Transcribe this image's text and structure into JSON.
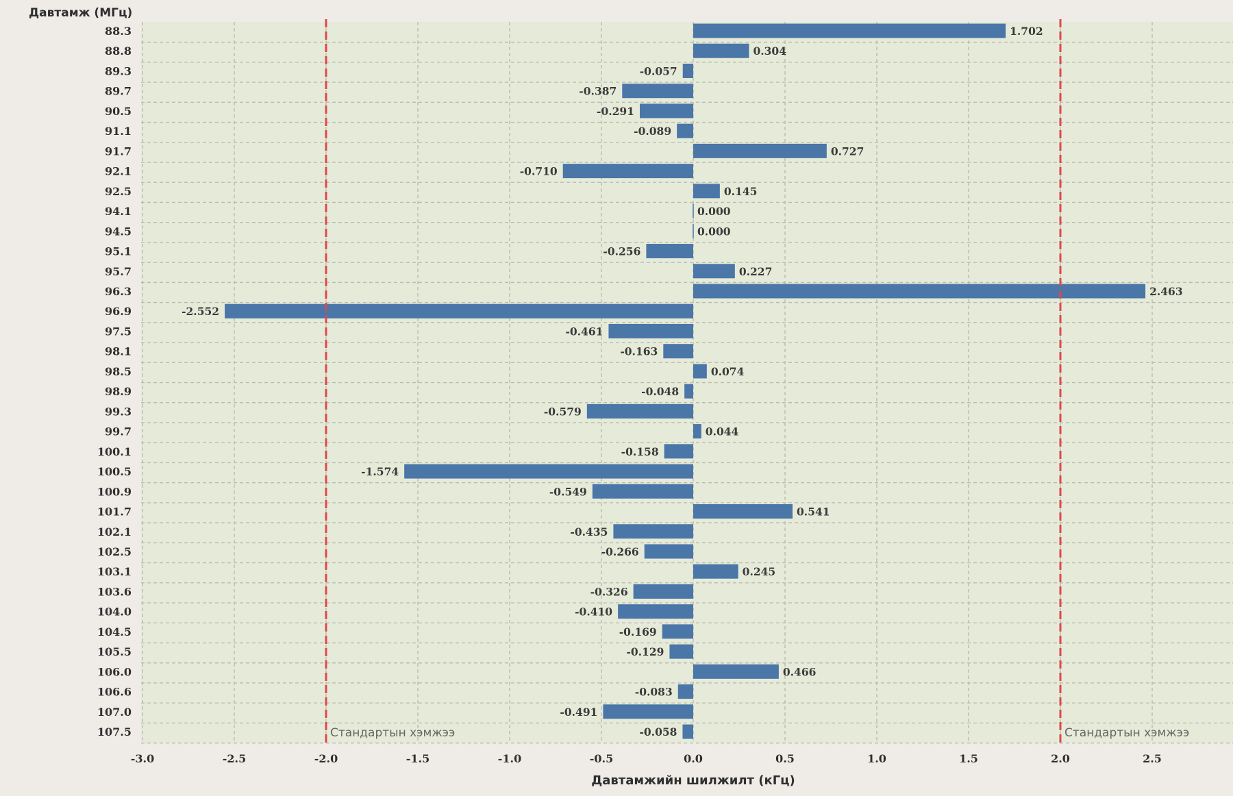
{
  "chart_data": {
    "type": "bar",
    "orientation": "horizontal",
    "ylabel": "Давтамж (МГц)",
    "xlabel": "Давтамжийн шилжилт (кГц)",
    "categories": [
      "88.3",
      "88.8",
      "89.3",
      "89.7",
      "90.5",
      "91.1",
      "91.7",
      "92.1",
      "92.5",
      "94.1",
      "94.5",
      "95.1",
      "95.7",
      "96.3",
      "96.9",
      "97.5",
      "98.1",
      "98.5",
      "98.9",
      "99.3",
      "99.7",
      "100.1",
      "100.5",
      "100.9",
      "101.7",
      "102.1",
      "102.5",
      "103.1",
      "103.6",
      "104.0",
      "104.5",
      "105.5",
      "106.0",
      "106.6",
      "107.0",
      "107.5"
    ],
    "values": [
      1.702,
      0.304,
      -0.057,
      -0.387,
      -0.291,
      -0.089,
      0.727,
      -0.71,
      0.145,
      0.0,
      0.0,
      -0.256,
      0.227,
      2.463,
      -2.552,
      -0.461,
      -0.163,
      0.074,
      -0.048,
      -0.579,
      0.044,
      -0.158,
      -1.574,
      -0.549,
      0.541,
      -0.435,
      -0.266,
      0.245,
      -0.326,
      -0.41,
      -0.169,
      -0.129,
      0.466,
      -0.083,
      -0.491,
      -0.058
    ],
    "value_labels": [
      "1.702",
      "0.304",
      "-0.057",
      "-0.387",
      "-0.291",
      "-0.089",
      "0.727",
      "-0.710",
      "0.145",
      "0.000",
      "0.000",
      "-0.256",
      "0.227",
      "2.463",
      "-2.552",
      "-0.461",
      "-0.163",
      "0.074",
      "-0.048",
      "-0.579",
      "0.044",
      "-0.158",
      "-1.574",
      "-0.549",
      "0.541",
      "-0.435",
      "-0.266",
      "0.245",
      "-0.326",
      "-0.410",
      "-0.169",
      "-0.129",
      "0.466",
      "-0.083",
      "-0.491",
      "-0.058"
    ],
    "xlim": [
      -3.0,
      2.93
    ],
    "xticks": [
      -3.0,
      -2.5,
      -2.0,
      -1.5,
      -1.0,
      -0.5,
      0.0,
      0.5,
      1.0,
      1.5,
      2.0,
      2.5
    ],
    "xtick_labels": [
      "-3.0",
      "-2.5",
      "-2.0",
      "-1.5",
      "-1.0",
      "-0.5",
      "0.0",
      "0.5",
      "1.0",
      "1.5",
      "2.0",
      "2.5"
    ],
    "reference_lines": [
      {
        "x": -2.0,
        "label": "Стандартын хэмжээ",
        "color": "#e0474c",
        "style": "dashed"
      },
      {
        "x": 2.0,
        "label": "Стандартын хэмжээ",
        "color": "#e0474c",
        "style": "dashed"
      }
    ],
    "grid": true,
    "colors": {
      "bar": "#4a76a8",
      "plot_background": "#e6ebd9",
      "page_background": "#efebe7",
      "grid": "#b9bcb0",
      "reference": "#e0474c"
    }
  }
}
